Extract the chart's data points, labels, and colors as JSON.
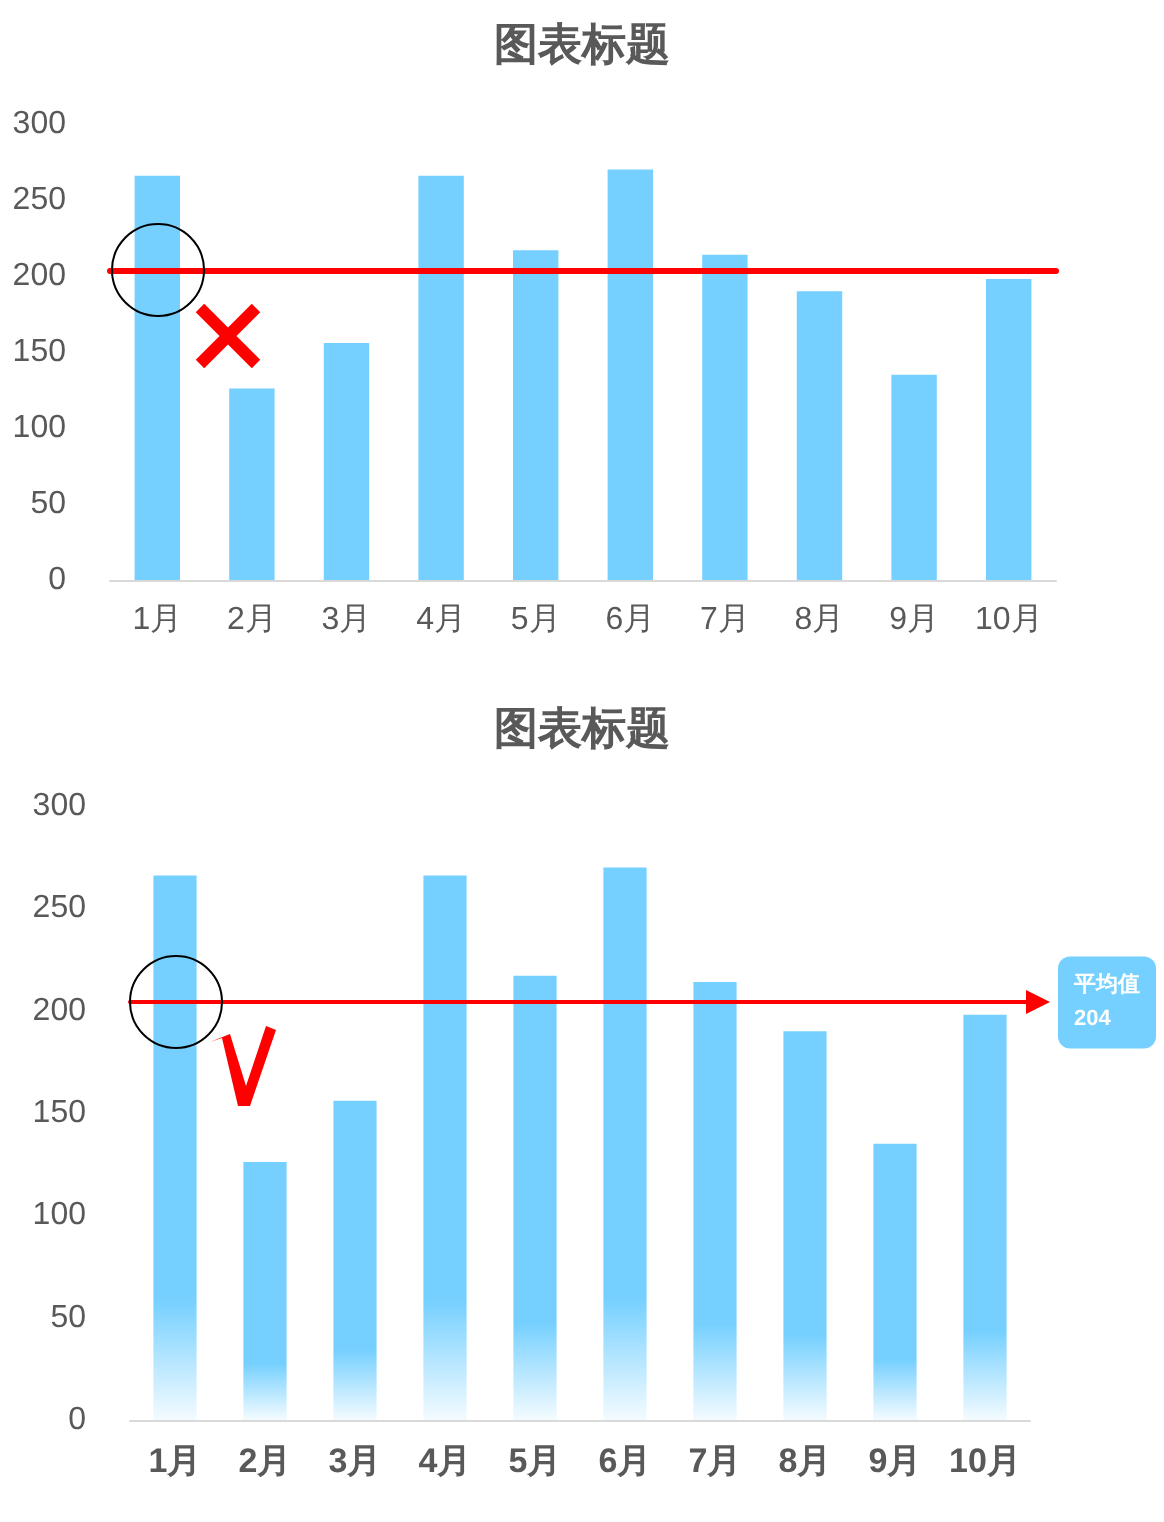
{
  "chart_data": [
    {
      "type": "bar",
      "title": "图表标题",
      "categories": [
        "1月",
        "2月",
        "3月",
        "4月",
        "5月",
        "6月",
        "7月",
        "8月",
        "9月",
        "10月"
      ],
      "series": [
        {
          "color": "#75d0ff",
          "values": [
            266,
            126,
            156,
            266,
            217,
            270,
            214,
            190,
            135,
            198
          ]
        }
      ],
      "ylim": [
        0,
        300
      ],
      "yticks": [
        0,
        50,
        100,
        150,
        200,
        250,
        300
      ],
      "grid": false,
      "ref_lines": [
        {
          "axis": "y",
          "value": 204,
          "color": "#ff0000",
          "line_style": "solid"
        }
      ]
    },
    {
      "type": "bar",
      "title": "图表标题",
      "categories": [
        "1月",
        "2月",
        "3月",
        "4月",
        "5月",
        "6月",
        "7月",
        "8月",
        "9月",
        "10月"
      ],
      "series": [
        {
          "color": "#75d0ff",
          "values": [
            266,
            126,
            156,
            266,
            217,
            270,
            214,
            190,
            135,
            198
          ]
        }
      ],
      "ylim": [
        0,
        300
      ],
      "yticks": [
        0,
        50,
        100,
        150,
        200,
        250,
        300
      ],
      "grid": false,
      "ref_lines": [
        {
          "axis": "y",
          "value": 204,
          "label": "平均值\n204",
          "color": "#ff0000",
          "line_style": "solid"
        }
      ]
    }
  ]
}
